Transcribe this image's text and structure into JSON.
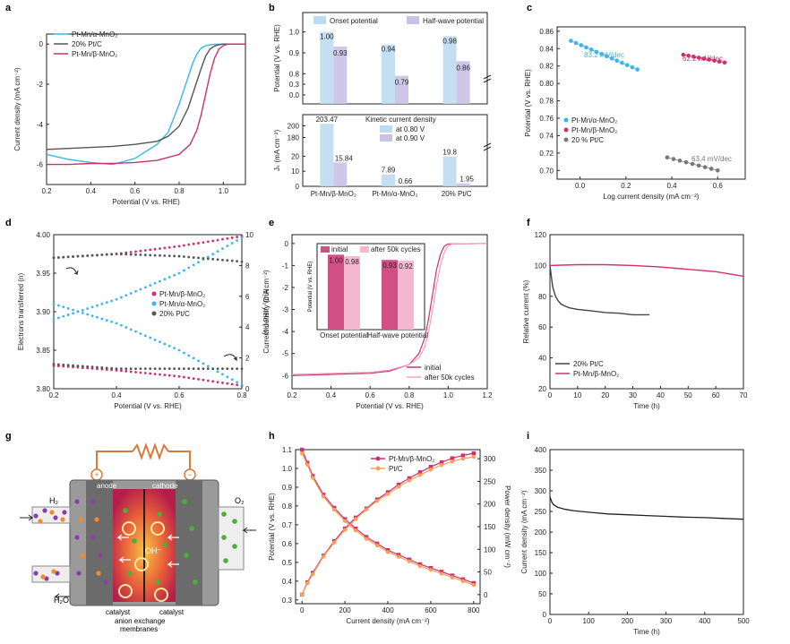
{
  "chart_data": [
    {
      "panel": "a",
      "type": "line",
      "xlabel": "Potential (V vs. RHE)",
      "ylabel": "Current density (mA cm⁻²)",
      "xlim": [
        0.2,
        1.1
      ],
      "ylim": [
        -7,
        0.5
      ],
      "xticks": [
        "0.2",
        "0.4",
        "0.6",
        "0.8",
        "1.0"
      ],
      "yticks": [
        "0",
        "-2",
        "-4",
        "-6"
      ],
      "series": [
        {
          "name": "Pt-Mn/α-MnO₂",
          "color": "#3ab6e8",
          "x": [
            0.2,
            0.3,
            0.4,
            0.5,
            0.6,
            0.7,
            0.75,
            0.8,
            0.83,
            0.86,
            0.88,
            0.9,
            0.92,
            0.94,
            0.96,
            1.0,
            1.1
          ],
          "y": [
            -5.5,
            -5.75,
            -5.9,
            -6.0,
            -5.7,
            -5.0,
            -4.4,
            -3.0,
            -2.0,
            -1.0,
            -0.5,
            -0.2,
            -0.08,
            -0.03,
            -0.01,
            0,
            0
          ]
        },
        {
          "name": "20% Pt/C",
          "color": "#555555",
          "x": [
            0.2,
            0.3,
            0.4,
            0.5,
            0.6,
            0.7,
            0.75,
            0.8,
            0.84,
            0.87,
            0.9,
            0.92,
            0.94,
            0.96,
            0.98,
            1.0,
            1.1
          ],
          "y": [
            -5.25,
            -5.2,
            -5.15,
            -5.1,
            -5.0,
            -4.85,
            -4.6,
            -4.1,
            -3.2,
            -2.2,
            -1.2,
            -0.6,
            -0.25,
            -0.1,
            -0.03,
            0,
            0
          ]
        },
        {
          "name": "Pt-Mn/β-MnO₂",
          "color": "#d0306e",
          "x": [
            0.2,
            0.3,
            0.4,
            0.5,
            0.6,
            0.7,
            0.8,
            0.85,
            0.88,
            0.9,
            0.92,
            0.94,
            0.96,
            0.98,
            1.0,
            1.02,
            1.1
          ],
          "y": [
            -6.0,
            -6.0,
            -5.95,
            -5.95,
            -5.9,
            -5.8,
            -5.5,
            -5.0,
            -4.3,
            -3.5,
            -2.5,
            -1.5,
            -0.7,
            -0.25,
            -0.08,
            0,
            0
          ]
        }
      ]
    },
    {
      "panel": "b-top",
      "type": "bar",
      "ylabel": "Potential (V vs. RHE)",
      "categories": [
        "Pt-Mn/β-MnO₂",
        "Pt-Mn/α-MnO₂",
        "20% Pt/C"
      ],
      "yticks": [
        "1.0",
        "0.9",
        "0.8",
        "0.3",
        "0.0"
      ],
      "series": [
        {
          "name": "Onset potential",
          "color": "#bcdcf0",
          "values": [
            1.0,
            0.94,
            0.98
          ],
          "labels": [
            "1.00",
            "0.94",
            "0.98"
          ]
        },
        {
          "name": "Half-wave potential",
          "color": "#c9c1e6",
          "values": [
            0.93,
            0.79,
            0.86
          ],
          "labels": [
            "0.93",
            "0.79",
            "0.86"
          ]
        }
      ]
    },
    {
      "panel": "b-bottom",
      "type": "bar",
      "ylabel": "Jₖ (mA cm⁻²)",
      "title": "Kinetic current density",
      "categories": [
        "Pt-Mn/β-MnO₂",
        "Pt-Mn/α-MnO₂",
        "20% Pt/C"
      ],
      "yticks": [
        "200",
        "180",
        "20",
        "10",
        "0"
      ],
      "series": [
        {
          "name": "at 0.80 V",
          "color": "#bcdcf0",
          "values": [
            203.47,
            7.89,
            19.8
          ],
          "labels": [
            "203.47",
            "7.89",
            "19.8"
          ]
        },
        {
          "name": "at 0.90 V",
          "color": "#c9c1e6",
          "values": [
            15.84,
            0.66,
            1.95
          ],
          "labels": [
            "15.84",
            "0.66",
            "1.95"
          ]
        }
      ]
    },
    {
      "panel": "c",
      "type": "scatter",
      "xlabel": "Log current density (mA cm⁻²)",
      "ylabel": "Potential (V vs. RHE)",
      "xlim": [
        -0.1,
        0.72
      ],
      "ylim": [
        0.69,
        0.865
      ],
      "xticks": [
        "0.0",
        "0.2",
        "0.4",
        "0.6"
      ],
      "yticks": [
        "0.86",
        "0.84",
        "0.82",
        "0.80",
        "0.78",
        "0.76",
        "0.74",
        "0.72",
        "0.70"
      ],
      "annotations": [
        "83.2 mV/dec",
        "62.2 mV/dec",
        "63.4 mV/dec"
      ],
      "series": [
        {
          "name": "Pt-Mn/α-MnO₂",
          "color": "#3ab6e8",
          "x": [
            -0.04,
            0.25
          ],
          "y": [
            0.849,
            0.816
          ],
          "n": 14
        },
        {
          "name": "Pt-Mn/β-MnO₂",
          "color": "#d0306e",
          "x": [
            0.45,
            0.63
          ],
          "y": [
            0.833,
            0.824
          ],
          "n": 9
        },
        {
          "name": "20 % Pt/C",
          "color": "#777777",
          "x": [
            0.38,
            0.6
          ],
          "y": [
            0.715,
            0.7
          ],
          "n": 9
        }
      ]
    },
    {
      "panel": "d",
      "type": "scatter",
      "xlabel": "Potential (V vs. RHE)",
      "ylabel": "Electrons transferred (n)",
      "y2label": "H₂O₂ yield (%)",
      "xlim": [
        0.2,
        0.8
      ],
      "ylim": [
        3.8,
        4.0
      ],
      "y2lim": [
        0,
        10
      ],
      "xticks": [
        "0.2",
        "0.4",
        "0.6",
        "0.8"
      ],
      "yticks": [
        "4.00",
        "3.95",
        "3.90",
        "3.85",
        "3.80"
      ],
      "y2ticks": [
        "10",
        "8",
        "6",
        "4",
        "2",
        "0"
      ],
      "series": [
        {
          "name": "Pt-Mn/β-MnO₂",
          "color": "#d0306e",
          "n_x": [
            0.2,
            0.4,
            0.6,
            0.8
          ],
          "n_y": [
            3.97,
            3.975,
            3.985,
            3.998
          ],
          "h_y": [
            1.5,
            1.2,
            0.8,
            0.2
          ]
        },
        {
          "name": "Pt-Mn/α-MnO₂",
          "color": "#3ab6e8",
          "n_x": [
            0.2,
            0.4,
            0.6,
            0.8
          ],
          "n_y": [
            3.91,
            3.885,
            3.85,
            3.805
          ],
          "h_y": [
            4.5,
            5.8,
            7.5,
            9.8
          ]
        },
        {
          "name": "20% Pt/C",
          "color": "#555555",
          "n_x": [
            0.2,
            0.4,
            0.6,
            0.8
          ],
          "n_y": [
            3.97,
            3.975,
            3.972,
            3.965
          ],
          "h_y": [
            1.6,
            1.3,
            1.3,
            1.3
          ]
        }
      ]
    },
    {
      "panel": "e",
      "type": "line",
      "xlabel": "Potential (V vs. RHE)",
      "ylabel": "Current density (mA cm⁻²)",
      "xlim": [
        0.2,
        1.2
      ],
      "ylim": [
        -6.6,
        0.4
      ],
      "xticks": [
        "0.2",
        "0.4",
        "0.6",
        "0.8",
        "1.0",
        "1.2"
      ],
      "yticks": [
        "0",
        "-1",
        "-2",
        "-3",
        "-4",
        "-5",
        "-6"
      ],
      "series": [
        {
          "name": "initial",
          "color": "#d0306e",
          "x": [
            0.2,
            0.4,
            0.6,
            0.7,
            0.8,
            0.85,
            0.88,
            0.9,
            0.92,
            0.94,
            0.96,
            0.98,
            1.0,
            1.2
          ],
          "y": [
            -6.0,
            -5.95,
            -5.9,
            -5.8,
            -5.5,
            -5.0,
            -4.3,
            -3.4,
            -2.3,
            -1.2,
            -0.5,
            -0.12,
            -0.02,
            0
          ]
        },
        {
          "name": "after 50k cycles",
          "color": "#f2a0bf",
          "x": [
            0.2,
            0.4,
            0.6,
            0.7,
            0.8,
            0.85,
            0.88,
            0.9,
            0.92,
            0.94,
            0.96,
            0.98,
            1.0,
            1.02,
            1.2
          ],
          "y": [
            -5.95,
            -5.9,
            -5.85,
            -5.75,
            -5.5,
            -5.2,
            -4.7,
            -4.0,
            -3.0,
            -1.9,
            -1.0,
            -0.4,
            -0.1,
            -0.02,
            0
          ]
        }
      ],
      "inset": {
        "ylabel": "Potential (V vs. RHE)",
        "categories": [
          "Onset potential",
          "Half-wave potential"
        ],
        "series": [
          {
            "name": "initial",
            "color": "#d04f84",
            "values": [
              1.0,
              0.93
            ],
            "labels": [
              "1.00",
              "0.93"
            ]
          },
          {
            "name": "after 50k cycles",
            "color": "#f5b8cf",
            "values": [
              0.98,
              0.92
            ],
            "labels": [
              "0.98",
              "0.92"
            ]
          }
        ]
      }
    },
    {
      "panel": "f",
      "type": "line",
      "xlabel": "Time (h)",
      "ylabel": "Relative current (%)",
      "xlim": [
        0,
        70
      ],
      "ylim": [
        20,
        120
      ],
      "xticks": [
        "0",
        "10",
        "20",
        "30",
        "40",
        "50",
        "60",
        "70"
      ],
      "yticks": [
        "120",
        "100",
        "80",
        "60",
        "40",
        "20"
      ],
      "series": [
        {
          "name": "20% Pt/C",
          "color": "#444444",
          "x": [
            0,
            0.5,
            1,
            2,
            3,
            4,
            5,
            7,
            10,
            15,
            20,
            25,
            30,
            36
          ],
          "y": [
            100,
            93,
            86,
            80,
            77,
            75,
            74,
            72.5,
            71.5,
            70.5,
            69.5,
            69,
            68,
            68
          ]
        },
        {
          "name": "Pt-Mn/β-MnO₂",
          "color": "#d0306e",
          "x": [
            0,
            10,
            20,
            30,
            40,
            50,
            60,
            70
          ],
          "y": [
            100,
            100.5,
            100.5,
            100,
            99,
            97.5,
            96,
            93
          ]
        }
      ]
    },
    {
      "panel": "h",
      "type": "line",
      "xlabel": "Current density (mA cm⁻²)",
      "ylabel": "Potential (V vs. RHE)",
      "y2label": "Power density (mW cm⁻²)",
      "xlim": [
        -30,
        830
      ],
      "ylim": [
        0.28,
        1.1
      ],
      "y2lim": [
        -20,
        320
      ],
      "xticks": [
        "0",
        "200",
        "400",
        "600",
        "800"
      ],
      "yticks": [
        "1.1",
        "1.0",
        "0.9",
        "0.8",
        "0.7",
        "0.6",
        "0.5",
        "0.4",
        "0.3"
      ],
      "y2ticks": [
        "300",
        "250",
        "200",
        "150",
        "100",
        "50",
        "0"
      ],
      "series": [
        {
          "name": "Pt-Mn/β-MnO₂",
          "color": "#d0306e",
          "x": [
            0,
            25,
            50,
            100,
            150,
            200,
            250,
            300,
            350,
            400,
            450,
            500,
            550,
            600,
            650,
            700,
            750,
            800
          ],
          "v": [
            1.1,
            1.03,
            0.96,
            0.86,
            0.79,
            0.73,
            0.68,
            0.635,
            0.6,
            0.565,
            0.54,
            0.515,
            0.49,
            0.47,
            0.45,
            0.43,
            0.41,
            0.39
          ],
          "p": [
            0,
            27,
            48,
            86,
            118,
            146,
            170,
            190,
            210,
            226,
            243,
            257,
            270,
            282,
            292,
            301,
            307,
            312
          ]
        },
        {
          "name": "Pt/C",
          "color": "#f5a15a",
          "x": [
            0,
            25,
            50,
            100,
            150,
            200,
            250,
            300,
            350,
            400,
            450,
            500,
            550,
            600,
            650,
            700,
            750,
            800
          ],
          "v": [
            1.08,
            1.02,
            0.95,
            0.85,
            0.78,
            0.72,
            0.67,
            0.625,
            0.59,
            0.555,
            0.53,
            0.505,
            0.48,
            0.46,
            0.44,
            0.42,
            0.4,
            0.38
          ],
          "p": [
            0,
            25,
            45,
            84,
            115,
            143,
            167,
            188,
            207,
            222,
            238,
            252,
            264,
            276,
            286,
            294,
            300,
            304
          ]
        }
      ]
    },
    {
      "panel": "i",
      "type": "line",
      "xlabel": "Time (h)",
      "ylabel": "Current density (mA cm⁻²)",
      "xlim": [
        0,
        500
      ],
      "ylim": [
        0,
        400
      ],
      "xticks": [
        "0",
        "100",
        "200",
        "300",
        "400",
        "500"
      ],
      "yticks": [
        "400",
        "350",
        "300",
        "250",
        "200",
        "150",
        "100",
        "50",
        "0"
      ],
      "series": [
        {
          "name": "",
          "color": "#222222",
          "x": [
            0,
            2,
            5,
            10,
            20,
            40,
            60,
            100,
            150,
            200,
            250,
            300,
            350,
            400,
            450,
            500
          ],
          "y": [
            285,
            280,
            272,
            266,
            260,
            255,
            252,
            248,
            244,
            242,
            240,
            238,
            236,
            235,
            233,
            231
          ]
        }
      ]
    }
  ],
  "panel_letters": [
    "a",
    "b",
    "c",
    "d",
    "e",
    "f",
    "g",
    "h",
    "i"
  ],
  "schematic": {
    "anode": "anode",
    "cathode": "cathode",
    "h2": "H₂",
    "o2": "O₂",
    "h2o": "H₂O",
    "oh": "OH⁻",
    "plus": "+",
    "minus": "−",
    "catalyst_left": "catalyst",
    "catalyst_right": "catalyst",
    "membrane_1": "anion exchange",
    "membrane_2": "membranes"
  }
}
